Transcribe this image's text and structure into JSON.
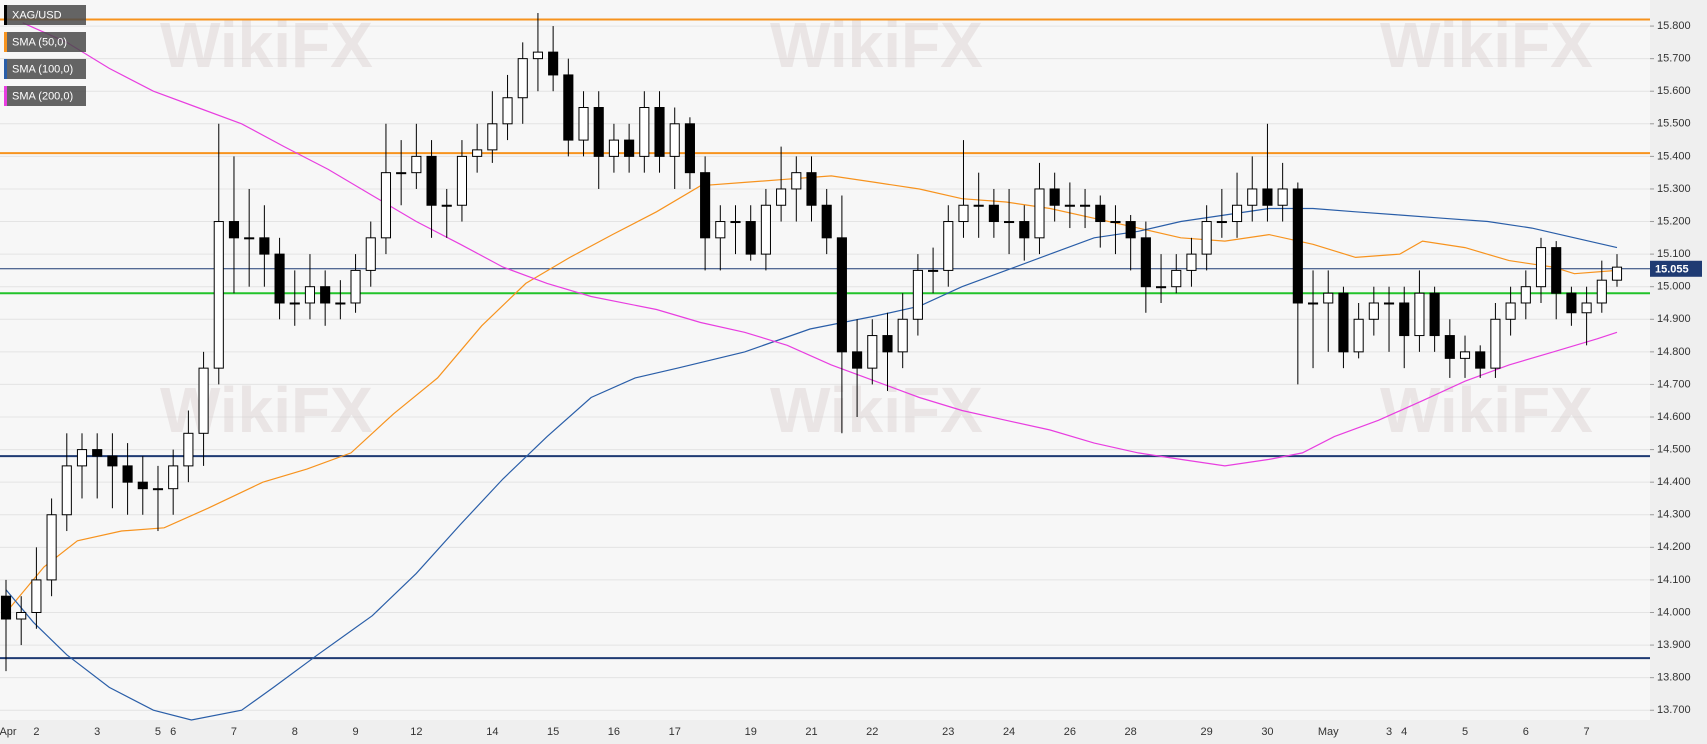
{
  "chart_data": {
    "type": "candlestick",
    "watermark": "WikiFX",
    "ylim": [
      13.67,
      15.88
    ],
    "yticks": [
      {
        "value": 13.7,
        "label": "13.700"
      },
      {
        "value": 13.8,
        "label": "13.800"
      },
      {
        "value": 13.9,
        "label": "13.900"
      },
      {
        "value": 14.0,
        "label": "14.000"
      },
      {
        "value": 14.1,
        "label": "14.100"
      },
      {
        "value": 14.2,
        "label": "14.200"
      },
      {
        "value": 14.3,
        "label": "14.300"
      },
      {
        "value": 14.4,
        "label": "14.400"
      },
      {
        "value": 14.5,
        "label": "14.500"
      },
      {
        "value": 14.6,
        "label": "14.600"
      },
      {
        "value": 14.7,
        "label": "14.700"
      },
      {
        "value": 14.8,
        "label": "14.800"
      },
      {
        "value": 14.9,
        "label": "14.900"
      },
      {
        "value": 15.0,
        "label": "15.000"
      },
      {
        "value": 15.1,
        "label": "15.100"
      },
      {
        "value": 15.2,
        "label": "15.200"
      },
      {
        "value": 15.3,
        "label": "15.300"
      },
      {
        "value": 15.4,
        "label": "15.400"
      },
      {
        "value": 15.5,
        "label": "15.500"
      },
      {
        "value": 15.6,
        "label": "15.600"
      },
      {
        "value": 15.7,
        "label": "15.700"
      },
      {
        "value": 15.8,
        "label": "15.800"
      }
    ],
    "grid": true,
    "levels": [
      {
        "value": 15.82,
        "color": "#f7931e"
      },
      {
        "value": 15.41,
        "color": "#f7931e"
      },
      {
        "value": 14.98,
        "color": "#22c32a"
      },
      {
        "value": 14.48,
        "color": "#1f3b73"
      },
      {
        "value": 13.86,
        "color": "#1f3b73"
      }
    ],
    "last_price": {
      "value": 15.055,
      "label": "15.055",
      "color": "#1f3b73"
    },
    "categories": [
      "Apr",
      null,
      "2",
      null,
      null,
      null,
      "3",
      null,
      null,
      null,
      "5",
      "6",
      null,
      null,
      null,
      "7",
      null,
      null,
      null,
      "8",
      null,
      null,
      null,
      "9",
      null,
      null,
      null,
      "12",
      null,
      null,
      null,
      null,
      "14",
      null,
      null,
      null,
      "15",
      null,
      null,
      null,
      "16",
      null,
      null,
      null,
      "17",
      null,
      null,
      null,
      null,
      "19",
      null,
      null,
      null,
      "21",
      null,
      null,
      null,
      "22",
      null,
      null,
      null,
      null,
      "23",
      null,
      null,
      null,
      "24",
      null,
      null,
      null,
      "26",
      null,
      null,
      null,
      "28",
      null,
      null,
      null,
      null,
      "29",
      null,
      null,
      null,
      "30",
      null,
      null,
      null,
      "May",
      null,
      null,
      null,
      "3",
      "4",
      null,
      null,
      null,
      "5",
      null,
      null,
      null,
      "6",
      null,
      null,
      null,
      "7",
      null,
      null
    ],
    "series": [
      {
        "name": "XAG/USD",
        "color": "#000000",
        "ohlc": [
          [
            14.05,
            14.1,
            13.82,
            13.98
          ],
          [
            13.98,
            14.05,
            13.9,
            14.0
          ],
          [
            14.0,
            14.2,
            13.95,
            14.1
          ],
          [
            14.1,
            14.35,
            14.05,
            14.3
          ],
          [
            14.3,
            14.55,
            14.25,
            14.45
          ],
          [
            14.45,
            14.55,
            14.35,
            14.5
          ],
          [
            14.5,
            14.55,
            14.35,
            14.48
          ],
          [
            14.48,
            14.55,
            14.32,
            14.45
          ],
          [
            14.45,
            14.52,
            14.3,
            14.4
          ],
          [
            14.4,
            14.48,
            14.3,
            14.38
          ],
          [
            14.38,
            14.45,
            14.25,
            14.38
          ],
          [
            14.38,
            14.5,
            14.3,
            14.45
          ],
          [
            14.45,
            14.62,
            14.4,
            14.55
          ],
          [
            14.55,
            14.8,
            14.45,
            14.75
          ],
          [
            14.75,
            15.5,
            14.7,
            15.2
          ],
          [
            15.2,
            15.4,
            14.98,
            15.15
          ],
          [
            15.15,
            15.3,
            15.0,
            15.15
          ],
          [
            15.15,
            15.25,
            15.0,
            15.1
          ],
          [
            15.1,
            15.15,
            14.9,
            14.95
          ],
          [
            14.95,
            15.05,
            14.88,
            14.95
          ],
          [
            14.95,
            15.1,
            14.9,
            15.0
          ],
          [
            15.0,
            15.05,
            14.88,
            14.95
          ],
          [
            14.95,
            15.02,
            14.9,
            14.95
          ],
          [
            14.95,
            15.1,
            14.92,
            15.05
          ],
          [
            15.05,
            15.2,
            15.0,
            15.15
          ],
          [
            15.15,
            15.5,
            15.1,
            15.35
          ],
          [
            15.35,
            15.45,
            15.25,
            15.35
          ],
          [
            15.35,
            15.5,
            15.3,
            15.4
          ],
          [
            15.4,
            15.45,
            15.15,
            15.25
          ],
          [
            15.25,
            15.3,
            15.15,
            15.25
          ],
          [
            15.25,
            15.45,
            15.2,
            15.4
          ],
          [
            15.4,
            15.5,
            15.35,
            15.42
          ],
          [
            15.42,
            15.6,
            15.38,
            15.5
          ],
          [
            15.5,
            15.65,
            15.45,
            15.58
          ],
          [
            15.58,
            15.75,
            15.5,
            15.7
          ],
          [
            15.7,
            15.84,
            15.6,
            15.72
          ],
          [
            15.72,
            15.8,
            15.6,
            15.65
          ],
          [
            15.65,
            15.7,
            15.4,
            15.45
          ],
          [
            15.45,
            15.6,
            15.4,
            15.55
          ],
          [
            15.55,
            15.6,
            15.3,
            15.4
          ],
          [
            15.4,
            15.5,
            15.35,
            15.45
          ],
          [
            15.45,
            15.5,
            15.35,
            15.4
          ],
          [
            15.4,
            15.6,
            15.35,
            15.55
          ],
          [
            15.55,
            15.6,
            15.35,
            15.4
          ],
          [
            15.4,
            15.55,
            15.3,
            15.5
          ],
          [
            15.5,
            15.52,
            15.3,
            15.35
          ],
          [
            15.35,
            15.4,
            15.05,
            15.15
          ],
          [
            15.15,
            15.25,
            15.05,
            15.2
          ],
          [
            15.2,
            15.25,
            15.1,
            15.2
          ],
          [
            15.2,
            15.25,
            15.08,
            15.1
          ],
          [
            15.1,
            15.3,
            15.05,
            15.25
          ],
          [
            15.25,
            15.43,
            15.2,
            15.3
          ],
          [
            15.3,
            15.4,
            15.2,
            15.35
          ],
          [
            15.35,
            15.4,
            15.2,
            15.25
          ],
          [
            15.25,
            15.3,
            15.1,
            15.15
          ],
          [
            15.15,
            15.28,
            14.55,
            14.8
          ],
          [
            14.8,
            14.9,
            14.6,
            14.75
          ],
          [
            14.75,
            14.9,
            14.7,
            14.85
          ],
          [
            14.85,
            14.92,
            14.68,
            14.8
          ],
          [
            14.8,
            14.98,
            14.75,
            14.9
          ],
          [
            14.9,
            15.1,
            14.85,
            15.05
          ],
          [
            15.05,
            15.12,
            14.98,
            15.05
          ],
          [
            15.05,
            15.25,
            15.0,
            15.2
          ],
          [
            15.2,
            15.45,
            15.15,
            15.25
          ],
          [
            15.25,
            15.35,
            15.15,
            15.25
          ],
          [
            15.25,
            15.3,
            15.15,
            15.2
          ],
          [
            15.2,
            15.3,
            15.1,
            15.2
          ],
          [
            15.2,
            15.25,
            15.08,
            15.15
          ],
          [
            15.15,
            15.38,
            15.1,
            15.3
          ],
          [
            15.3,
            15.35,
            15.2,
            15.25
          ],
          [
            15.25,
            15.32,
            15.18,
            15.25
          ],
          [
            15.25,
            15.3,
            15.18,
            15.25
          ],
          [
            15.25,
            15.28,
            15.12,
            15.2
          ],
          [
            15.2,
            15.25,
            15.1,
            15.2
          ],
          [
            15.2,
            15.22,
            15.05,
            15.15
          ],
          [
            15.15,
            15.2,
            14.92,
            15.0
          ],
          [
            15.0,
            15.1,
            14.95,
            15.0
          ],
          [
            15.0,
            15.1,
            14.98,
            15.05
          ],
          [
            15.05,
            15.15,
            15.0,
            15.1
          ],
          [
            15.1,
            15.25,
            15.05,
            15.2
          ],
          [
            15.2,
            15.3,
            15.15,
            15.2
          ],
          [
            15.2,
            15.35,
            15.15,
            15.25
          ],
          [
            15.25,
            15.4,
            15.2,
            15.3
          ],
          [
            15.3,
            15.5,
            15.2,
            15.25
          ],
          [
            15.25,
            15.38,
            15.2,
            15.3
          ],
          [
            15.3,
            15.32,
            14.7,
            14.95
          ],
          [
            14.95,
            15.05,
            14.75,
            14.95
          ],
          [
            14.95,
            15.05,
            14.8,
            14.98
          ],
          [
            14.98,
            15.0,
            14.75,
            14.8
          ],
          [
            14.8,
            14.95,
            14.78,
            14.9
          ],
          [
            14.9,
            15.0,
            14.85,
            14.95
          ],
          [
            14.95,
            15.0,
            14.8,
            14.95
          ],
          [
            14.95,
            15.0,
            14.75,
            14.85
          ],
          [
            14.85,
            15.05,
            14.8,
            14.98
          ],
          [
            14.98,
            15.0,
            14.8,
            14.85
          ],
          [
            14.85,
            14.9,
            14.72,
            14.78
          ],
          [
            14.78,
            14.85,
            14.72,
            14.8
          ],
          [
            14.8,
            14.82,
            14.72,
            14.75
          ],
          [
            14.75,
            14.95,
            14.72,
            14.9
          ],
          [
            14.9,
            15.0,
            14.85,
            14.95
          ],
          [
            14.95,
            15.05,
            14.9,
            15.0
          ],
          [
            15.0,
            15.15,
            14.95,
            15.12
          ],
          [
            15.12,
            15.14,
            14.9,
            14.98
          ],
          [
            14.98,
            15.0,
            14.88,
            14.92
          ],
          [
            14.92,
            15.0,
            14.82,
            14.95
          ],
          [
            14.95,
            15.08,
            14.92,
            15.02
          ],
          [
            15.02,
            15.1,
            15.0,
            15.06
          ]
        ]
      },
      {
        "name": "SMA (50,0)",
        "color": "#f7931e",
        "x": [
          0,
          2.5,
          4.7,
          7.6,
          10.4,
          13.3,
          16.9,
          19.8,
          22.7,
          25.5,
          28.4,
          31.3,
          34.2,
          37.1,
          39.9,
          42.8,
          45.7,
          48.6,
          51.4,
          54.3,
          57.2,
          60.1,
          62.9,
          65.8,
          68.7,
          71.6,
          74.5,
          77.3,
          80.2,
          83.1,
          86.0,
          88.8,
          91.7,
          93.2,
          96.0,
          98.9,
          101.8,
          103.2,
          106
        ],
        "values": [
          14.0,
          14.14,
          14.22,
          14.25,
          14.26,
          14.32,
          14.4,
          14.44,
          14.49,
          14.61,
          14.72,
          14.88,
          15.01,
          15.09,
          15.16,
          15.23,
          15.31,
          15.32,
          15.33,
          15.34,
          15.32,
          15.3,
          15.27,
          15.26,
          15.24,
          15.21,
          15.18,
          15.15,
          15.14,
          15.16,
          15.13,
          15.09,
          15.1,
          15.14,
          15.12,
          15.08,
          15.06,
          15.04,
          15.05
        ]
      },
      {
        "name": "SMA (100,0)",
        "color": "#2a5ea8",
        "x": [
          0,
          1.8,
          4.0,
          6.8,
          9.7,
          12.2,
          15.5,
          17.6,
          20.5,
          24.1,
          27.0,
          29.9,
          32.7,
          35.6,
          38.5,
          41.4,
          44.2,
          48.6,
          52.9,
          57.2,
          60.1,
          62.9,
          65.8,
          68.7,
          71.6,
          74.5,
          77.3,
          80.2,
          83.1,
          86.0,
          88.8,
          91.7,
          94.6,
          97.5,
          100.4,
          103.2,
          106
        ],
        "values": [
          14.07,
          13.97,
          13.87,
          13.77,
          13.7,
          13.67,
          13.7,
          13.77,
          13.87,
          13.99,
          14.12,
          14.27,
          14.41,
          14.54,
          14.66,
          14.72,
          14.75,
          14.8,
          14.87,
          14.91,
          14.94,
          15.0,
          15.05,
          15.1,
          15.15,
          15.17,
          15.2,
          15.22,
          15.24,
          15.24,
          15.23,
          15.22,
          15.21,
          15.2,
          15.18,
          15.15,
          15.12
        ]
      },
      {
        "name": "SMA (200,0)",
        "color": "#e83ee0",
        "x": [
          1.1,
          4.0,
          6.8,
          9.7,
          12.6,
          15.5,
          18.3,
          21.2,
          24.1,
          27.0,
          29.9,
          32.7,
          35.6,
          38.5,
          42.8,
          45.7,
          48.6,
          51.4,
          54.3,
          57.2,
          60.1,
          62.9,
          65.8,
          68.7,
          71.6,
          74.5,
          77.3,
          80.2,
          83.1,
          85.3,
          87.4,
          90.3,
          93.2,
          96.0,
          98.9,
          101.8,
          104.7,
          106
        ],
        "values": [
          15.81,
          15.75,
          15.67,
          15.6,
          15.55,
          15.5,
          15.43,
          15.36,
          15.28,
          15.2,
          15.13,
          15.06,
          15.01,
          14.97,
          14.93,
          14.89,
          14.86,
          14.82,
          14.76,
          14.71,
          14.66,
          14.62,
          14.59,
          14.56,
          14.52,
          14.49,
          14.47,
          14.45,
          14.47,
          14.49,
          14.54,
          14.59,
          14.65,
          14.71,
          14.76,
          14.8,
          14.84,
          14.86
        ]
      }
    ]
  }
}
